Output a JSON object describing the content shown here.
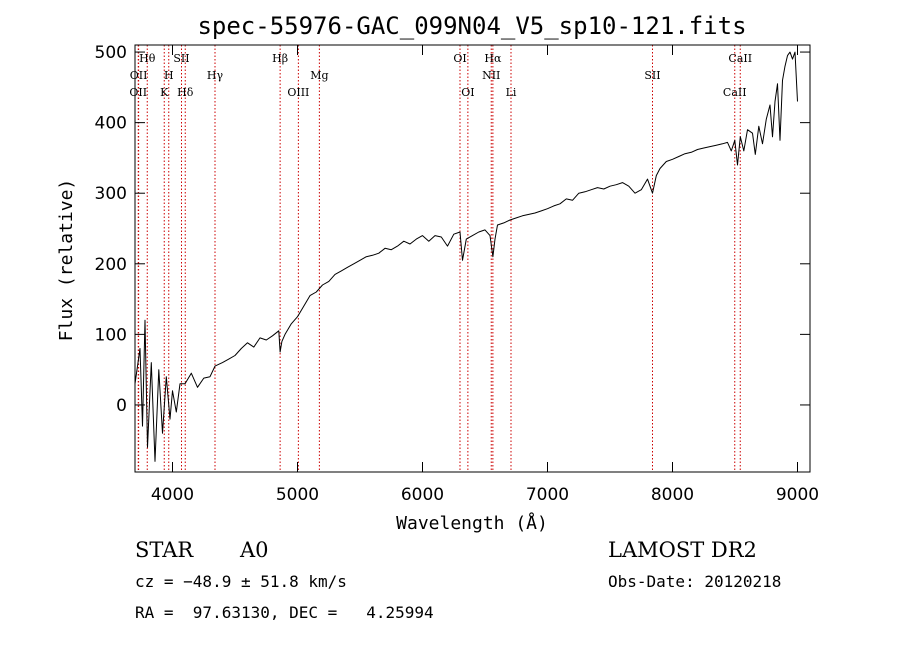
{
  "chart_data": {
    "type": "line",
    "title": "spec-55976-GAC_099N04_V5_sp10-121.fits",
    "xlabel": "Wavelength (Å)",
    "ylabel": "Flux (relative)",
    "xlim": [
      3700,
      9100
    ],
    "ylim": [
      -95,
      510
    ],
    "x_ticks": [
      4000,
      5000,
      6000,
      7000,
      8000,
      9000
    ],
    "y_ticks": [
      0,
      100,
      200,
      300,
      400,
      500
    ],
    "grid": false,
    "line_color": "#000000",
    "marker_color": "#cc0000",
    "series": [
      {
        "x": [
          3700,
          3740,
          3760,
          3780,
          3800,
          3830,
          3860,
          3890,
          3920,
          3950,
          3980,
          4000,
          4030,
          4060,
          4100,
          4150,
          4200,
          4250,
          4300,
          4340,
          4400,
          4450,
          4500,
          4550,
          4600,
          4650,
          4700,
          4750,
          4800,
          4850,
          4861,
          4875,
          4900,
          4950,
          5000,
          5050,
          5100,
          5150,
          5200,
          5250,
          5300,
          5350,
          5400,
          5450,
          5500,
          5550,
          5600,
          5650,
          5700,
          5750,
          5800,
          5850,
          5900,
          5950,
          6000,
          6050,
          6100,
          6150,
          6200,
          6250,
          6300,
          6320,
          6350,
          6400,
          6450,
          6500,
          6540,
          6563,
          6580,
          6600,
          6650,
          6700,
          6750,
          6800,
          6850,
          6900,
          6950,
          7000,
          7050,
          7100,
          7150,
          7200,
          7250,
          7300,
          7350,
          7400,
          7450,
          7500,
          7550,
          7600,
          7650,
          7700,
          7750,
          7800,
          7840,
          7870,
          7900,
          7950,
          8000,
          8050,
          8100,
          8150,
          8200,
          8250,
          8300,
          8350,
          8400,
          8440,
          8470,
          8498,
          8520,
          8542,
          8570,
          8600,
          8640,
          8662,
          8690,
          8720,
          8750,
          8780,
          8800,
          8820,
          8840,
          8860,
          8880,
          8900,
          8920,
          8940,
          8960,
          8980,
          9000
        ],
        "y": [
          30,
          80,
          -30,
          120,
          -60,
          60,
          -80,
          50,
          -40,
          40,
          -20,
          20,
          -10,
          30,
          30,
          45,
          25,
          38,
          40,
          55,
          60,
          65,
          70,
          80,
          88,
          82,
          95,
          92,
          98,
          105,
          75,
          90,
          100,
          115,
          125,
          140,
          155,
          160,
          170,
          175,
          185,
          190,
          195,
          200,
          205,
          210,
          212,
          215,
          222,
          220,
          225,
          232,
          228,
          235,
          240,
          232,
          240,
          238,
          225,
          242,
          245,
          205,
          235,
          240,
          245,
          248,
          240,
          210,
          235,
          255,
          258,
          262,
          265,
          268,
          270,
          272,
          275,
          278,
          282,
          285,
          292,
          290,
          300,
          302,
          305,
          308,
          306,
          310,
          312,
          315,
          310,
          300,
          305,
          320,
          300,
          325,
          335,
          345,
          348,
          352,
          356,
          358,
          362,
          364,
          366,
          368,
          370,
          372,
          360,
          375,
          340,
          380,
          360,
          390,
          385,
          355,
          395,
          370,
          405,
          425,
          380,
          430,
          455,
          375,
          460,
          480,
          495,
          500,
          490,
          500,
          430
        ]
      }
    ],
    "lines": [
      {
        "x": 3726,
        "label": "OII",
        "row": 3
      },
      {
        "x": 3729,
        "label": "OII",
        "row": 2
      },
      {
        "x": 3798,
        "label": "Hθ",
        "row": 1
      },
      {
        "x": 3934,
        "label": "K",
        "row": 3
      },
      {
        "x": 3970,
        "label": "H",
        "row": 2
      },
      {
        "x": 4072,
        "label": "SII",
        "row": 1
      },
      {
        "x": 4102,
        "label": "Hδ",
        "row": 3
      },
      {
        "x": 4340,
        "label": "Hγ",
        "row": 2
      },
      {
        "x": 4861,
        "label": "Hβ",
        "row": 1
      },
      {
        "x": 5007,
        "label": "OIII",
        "row": 3
      },
      {
        "x": 5175,
        "label": "Mg",
        "row": 2
      },
      {
        "x": 6300,
        "label": "OI",
        "row": 1
      },
      {
        "x": 6363,
        "label": "OI",
        "row": 3
      },
      {
        "x": 6550,
        "label": "NII",
        "row": 2
      },
      {
        "x": 6563,
        "label": "Hα",
        "row": 1
      },
      {
        "x": 6708,
        "label": "Li",
        "row": 3
      },
      {
        "x": 7840,
        "label": "SII",
        "row": 2
      },
      {
        "x": 8498,
        "label": "CaII",
        "row": 3
      },
      {
        "x": 8542,
        "label": "CaII",
        "row": 1
      }
    ]
  },
  "info": {
    "class_label": "STAR",
    "subclass": "A0",
    "survey": "LAMOST DR2",
    "velocity": "cz = −48.9 ± 51.8 km/s",
    "obs_date": "Obs-Date: 20120218",
    "coords": "RA =  97.63130, DEC =   4.25994"
  }
}
